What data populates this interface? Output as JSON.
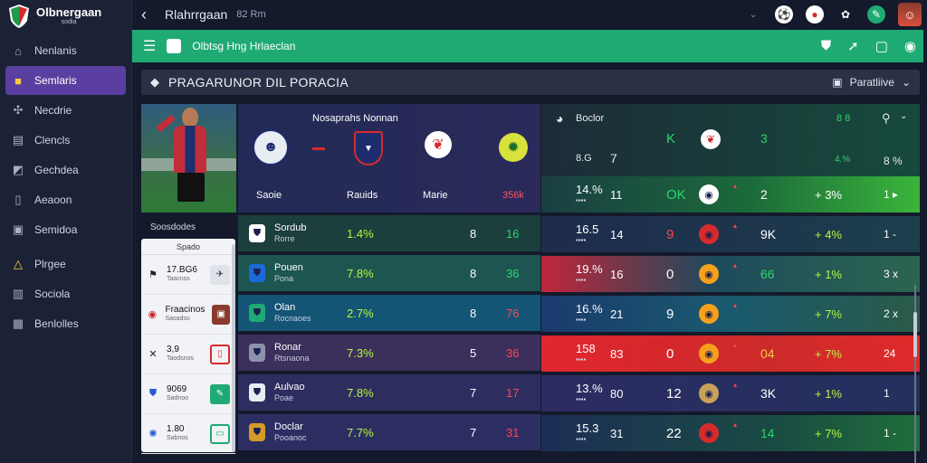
{
  "brand": {
    "name": "Olbnergaan",
    "sub": "sodia"
  },
  "sidebar": {
    "items": [
      {
        "label": "Nenlanis",
        "icon": "home-icon",
        "active": false
      },
      {
        "label": "Semlaris",
        "icon": "trophy-icon",
        "active": true
      },
      {
        "label": "Necdrie",
        "icon": "puzzle-icon",
        "active": false
      },
      {
        "label": "Clencls",
        "icon": "calendar-icon",
        "active": false
      },
      {
        "label": "Gechdea",
        "icon": "chart-icon",
        "active": false
      },
      {
        "label": "Aeaoon",
        "icon": "document-icon",
        "active": false
      },
      {
        "label": "Semidoa",
        "icon": "inbox-icon",
        "active": false
      },
      {
        "label": "Plrgee",
        "icon": "warning-icon",
        "active": false
      },
      {
        "label": "Sociola",
        "icon": "bar-chart-icon",
        "active": false
      },
      {
        "label": "Benlolles",
        "icon": "list-icon",
        "active": false
      }
    ]
  },
  "topbar": {
    "title": "Rlahrrgaan",
    "sub": "82 Rm"
  },
  "greenbar": {
    "title": "Olbtsg Hng Hrlaeclan"
  },
  "section": {
    "title": "PRAGARUNOR DIL PORACIA",
    "right_label": "Paratliive"
  },
  "sidebox": {
    "title": "Soosdodes",
    "head": "Spado",
    "rows": [
      {
        "value": "17.BG6",
        "sub": "Taacnss"
      },
      {
        "value": "Fraacinos",
        "sub": "Sasadso"
      },
      {
        "value": "3,9",
        "sub": "Taodsnos"
      },
      {
        "value": "9069",
        "sub": "Sadnoo"
      },
      {
        "value": "1.80",
        "sub": "Sabnos"
      }
    ]
  },
  "match": {
    "title": "Nosaprahs Nonnan",
    "labels": [
      "Saoie",
      "Rauids",
      "Marie",
      "356k"
    ]
  },
  "table": {
    "rows": [
      {
        "name": "Sordub",
        "sub": "Rorre",
        "pct": "1.4%",
        "a": "8",
        "b": "16",
        "bg": "#1c3e3c",
        "b_color": "#29d66a"
      },
      {
        "name": "Pouen",
        "sub": "Pona",
        "pct": "7.8%",
        "a": "8",
        "b": "36",
        "bg": "#1d5550",
        "b_color": "#29d66a"
      },
      {
        "name": "Olan",
        "sub": "Rocnaoes",
        "pct": "2.7%",
        "a": "8",
        "b": "76",
        "bg": "#145575",
        "b_color": "#ff4455"
      },
      {
        "name": "Ronar",
        "sub": "Rtsnaona",
        "pct": "7.3%",
        "a": "5",
        "b": "36",
        "bg": "#3b2f5c",
        "b_color": "#ff4455"
      },
      {
        "name": "Aulvao",
        "sub": "Poae",
        "pct": "7.8%",
        "a": "7",
        "b": "17",
        "bg": "#2e2d60",
        "b_color": "#ff4455"
      },
      {
        "name": "Doclar",
        "sub": "Pooanoc",
        "pct": "7.7%",
        "a": "7",
        "b": "31",
        "bg": "#2c2e62",
        "b_color": "#ff4455"
      }
    ]
  },
  "stats": {
    "head": {
      "label": "Boclor",
      "pct": "8.G",
      "n1": "7",
      "k": "K",
      "n3": "3",
      "right1": "8 8",
      "right2": "4.%",
      "right3": "8 %"
    },
    "rows": [
      {
        "pct": "14.%",
        "n1": "11",
        "n2": "OK",
        "n3": "2",
        "n4": "+ 3%",
        "n5": "1 ▸",
        "bg": "linear-gradient(90deg,#1a3e43,#1b6a3a 55%,#3ab53a)",
        "n3_color": "#fff"
      },
      {
        "pct": "16.5",
        "n1": "14",
        "n2": "9",
        "n3": "9K",
        "n4": "+ 4%",
        "n5": "1 -",
        "bg": "linear-gradient(90deg,#1e2b4d,#1c3f4c)",
        "n3_color": "#fff"
      },
      {
        "pct": "19.%",
        "n1": "16",
        "n2": "0",
        "n3": "66",
        "n4": "+ 1%",
        "n5": "3 x",
        "bg": "linear-gradient(90deg,#c1263a,#1e4a5c 45%,#2b6550)",
        "n3_color": "#2dd66a"
      },
      {
        "pct": "16.%",
        "n1": "21",
        "n2": "9",
        "n3": "",
        "n4": "+ 7%",
        "n5": "2 x",
        "bg": "linear-gradient(90deg,#1a3a6e,#1a5a6e 50%,#2a5a48)",
        "n3_color": "#fff"
      },
      {
        "pct": "158",
        "n1": "83",
        "n2": "0",
        "n3": "04",
        "n4": "+ 7%",
        "n5": "24",
        "bg": "linear-gradient(90deg,#e0262e,#cc2a2a 60%,#e02a2a)",
        "n3_color": "#f7c948"
      },
      {
        "pct": "13.%",
        "n1": "80",
        "n2": "12",
        "n3": "3K",
        "n4": "+ 1%",
        "n5": "1",
        "bg": "linear-gradient(90deg,#2c2c62,#25305e)",
        "n3_color": "#fff"
      },
      {
        "pct": "15.3",
        "n1": "31",
        "n2": "22",
        "n3": "14",
        "n4": "+ 7%",
        "n5": "1 -",
        "bg": "linear-gradient(90deg,#1c2e55,#1a4a43 60%,#1f6e3a)",
        "n3_color": "#29d66a"
      }
    ]
  },
  "colors": {
    "accent": "#1faa74",
    "active_nav": "#5b3fa0",
    "lime": "#b6f542"
  }
}
